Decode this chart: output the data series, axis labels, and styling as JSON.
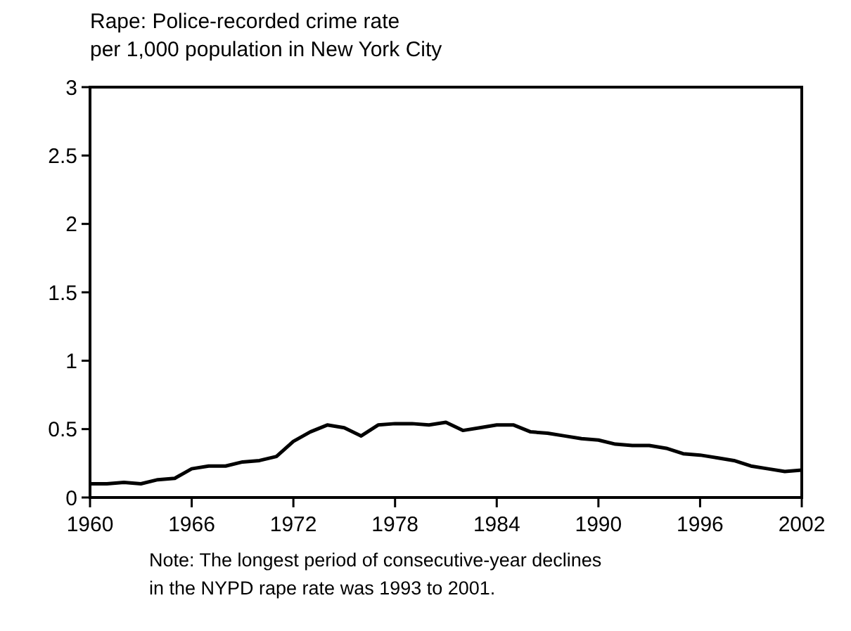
{
  "chart_data": {
    "type": "line",
    "title": "Rape: Police-recorded crime rate\nper 1,000 population in New York City",
    "x": [
      1960,
      1961,
      1962,
      1963,
      1964,
      1965,
      1966,
      1967,
      1968,
      1969,
      1970,
      1971,
      1972,
      1973,
      1974,
      1975,
      1976,
      1977,
      1978,
      1979,
      1980,
      1981,
      1982,
      1983,
      1984,
      1985,
      1986,
      1987,
      1988,
      1989,
      1990,
      1991,
      1992,
      1993,
      1994,
      1995,
      1996,
      1997,
      1998,
      1999,
      2000,
      2001,
      2002
    ],
    "series": [
      {
        "color": "#000000",
        "values": [
          0.1,
          0.1,
          0.11,
          0.1,
          0.13,
          0.14,
          0.21,
          0.23,
          0.23,
          0.26,
          0.27,
          0.3,
          0.41,
          0.48,
          0.53,
          0.51,
          0.45,
          0.53,
          0.54,
          0.54,
          0.53,
          0.55,
          0.49,
          0.51,
          0.53,
          0.53,
          0.48,
          0.47,
          0.45,
          0.43,
          0.42,
          0.39,
          0.38,
          0.38,
          0.36,
          0.32,
          0.31,
          0.29,
          0.27,
          0.23,
          0.21,
          0.19,
          0.2
        ]
      }
    ],
    "xlim": [
      1960,
      2002
    ],
    "xticks": [
      1960,
      1966,
      1972,
      1978,
      1984,
      1990,
      1996,
      2002
    ],
    "ylim": [
      0,
      3
    ],
    "yticks": [
      0,
      0.5,
      1,
      1.5,
      2,
      2.5,
      3
    ],
    "grid": false,
    "line_style": "solid",
    "annotations": [
      "Note: The longest period of consecutive-year declines\nin the NYPD rape rate was 1993 to 2001."
    ]
  }
}
